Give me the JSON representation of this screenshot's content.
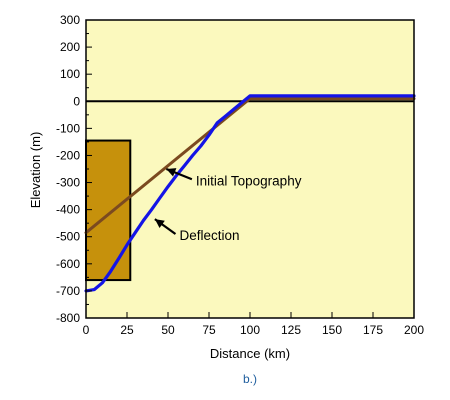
{
  "chart_data": {
    "type": "line",
    "xlabel": "Distance (km)",
    "ylabel": "Elevation (m)",
    "xlim": [
      0,
      200
    ],
    "ylim": [
      -800,
      300
    ],
    "x_ticks": [
      0,
      25,
      50,
      75,
      100,
      125,
      150,
      175,
      200
    ],
    "y_ticks": [
      300,
      200,
      100,
      0,
      -100,
      -200,
      -300,
      -400,
      -500,
      -600,
      -700,
      -800
    ],
    "y_minor_step": 50,
    "background_color": "#FBF9BE",
    "grid": false,
    "zero_line": 0,
    "load_block": {
      "x_range": [
        0,
        27
      ],
      "y_range": [
        -660,
        -145
      ],
      "fill": "#C6910C"
    },
    "series": [
      {
        "color": "#7B4A20",
        "x": [
          0,
          100,
          200
        ],
        "y": [
          -485,
          10,
          10
        ]
      },
      {
        "color": "#1414E6",
        "x": [
          0,
          5,
          10,
          15,
          20,
          25,
          30,
          35,
          40,
          45,
          50,
          55,
          60,
          65,
          70,
          75,
          80,
          85,
          90,
          95,
          100,
          110,
          125,
          150,
          175,
          200
        ],
        "y": [
          -700,
          -695,
          -670,
          -628,
          -580,
          -530,
          -485,
          -440,
          -400,
          -357,
          -315,
          -275,
          -238,
          -200,
          -165,
          -125,
          -80,
          -55,
          -30,
          -5,
          20,
          20,
          20,
          20,
          20,
          20
        ]
      }
    ],
    "annotations": [
      {
        "text": "Initial Topography",
        "x": 67,
        "y": -310,
        "arrow_to": [
          49,
          -250
        ]
      },
      {
        "text": "Deflection",
        "x": 57,
        "y": -512,
        "arrow_to": [
          42,
          -435
        ]
      }
    ]
  },
  "caption": "b.)",
  "caption_color": "#1F5E9E"
}
